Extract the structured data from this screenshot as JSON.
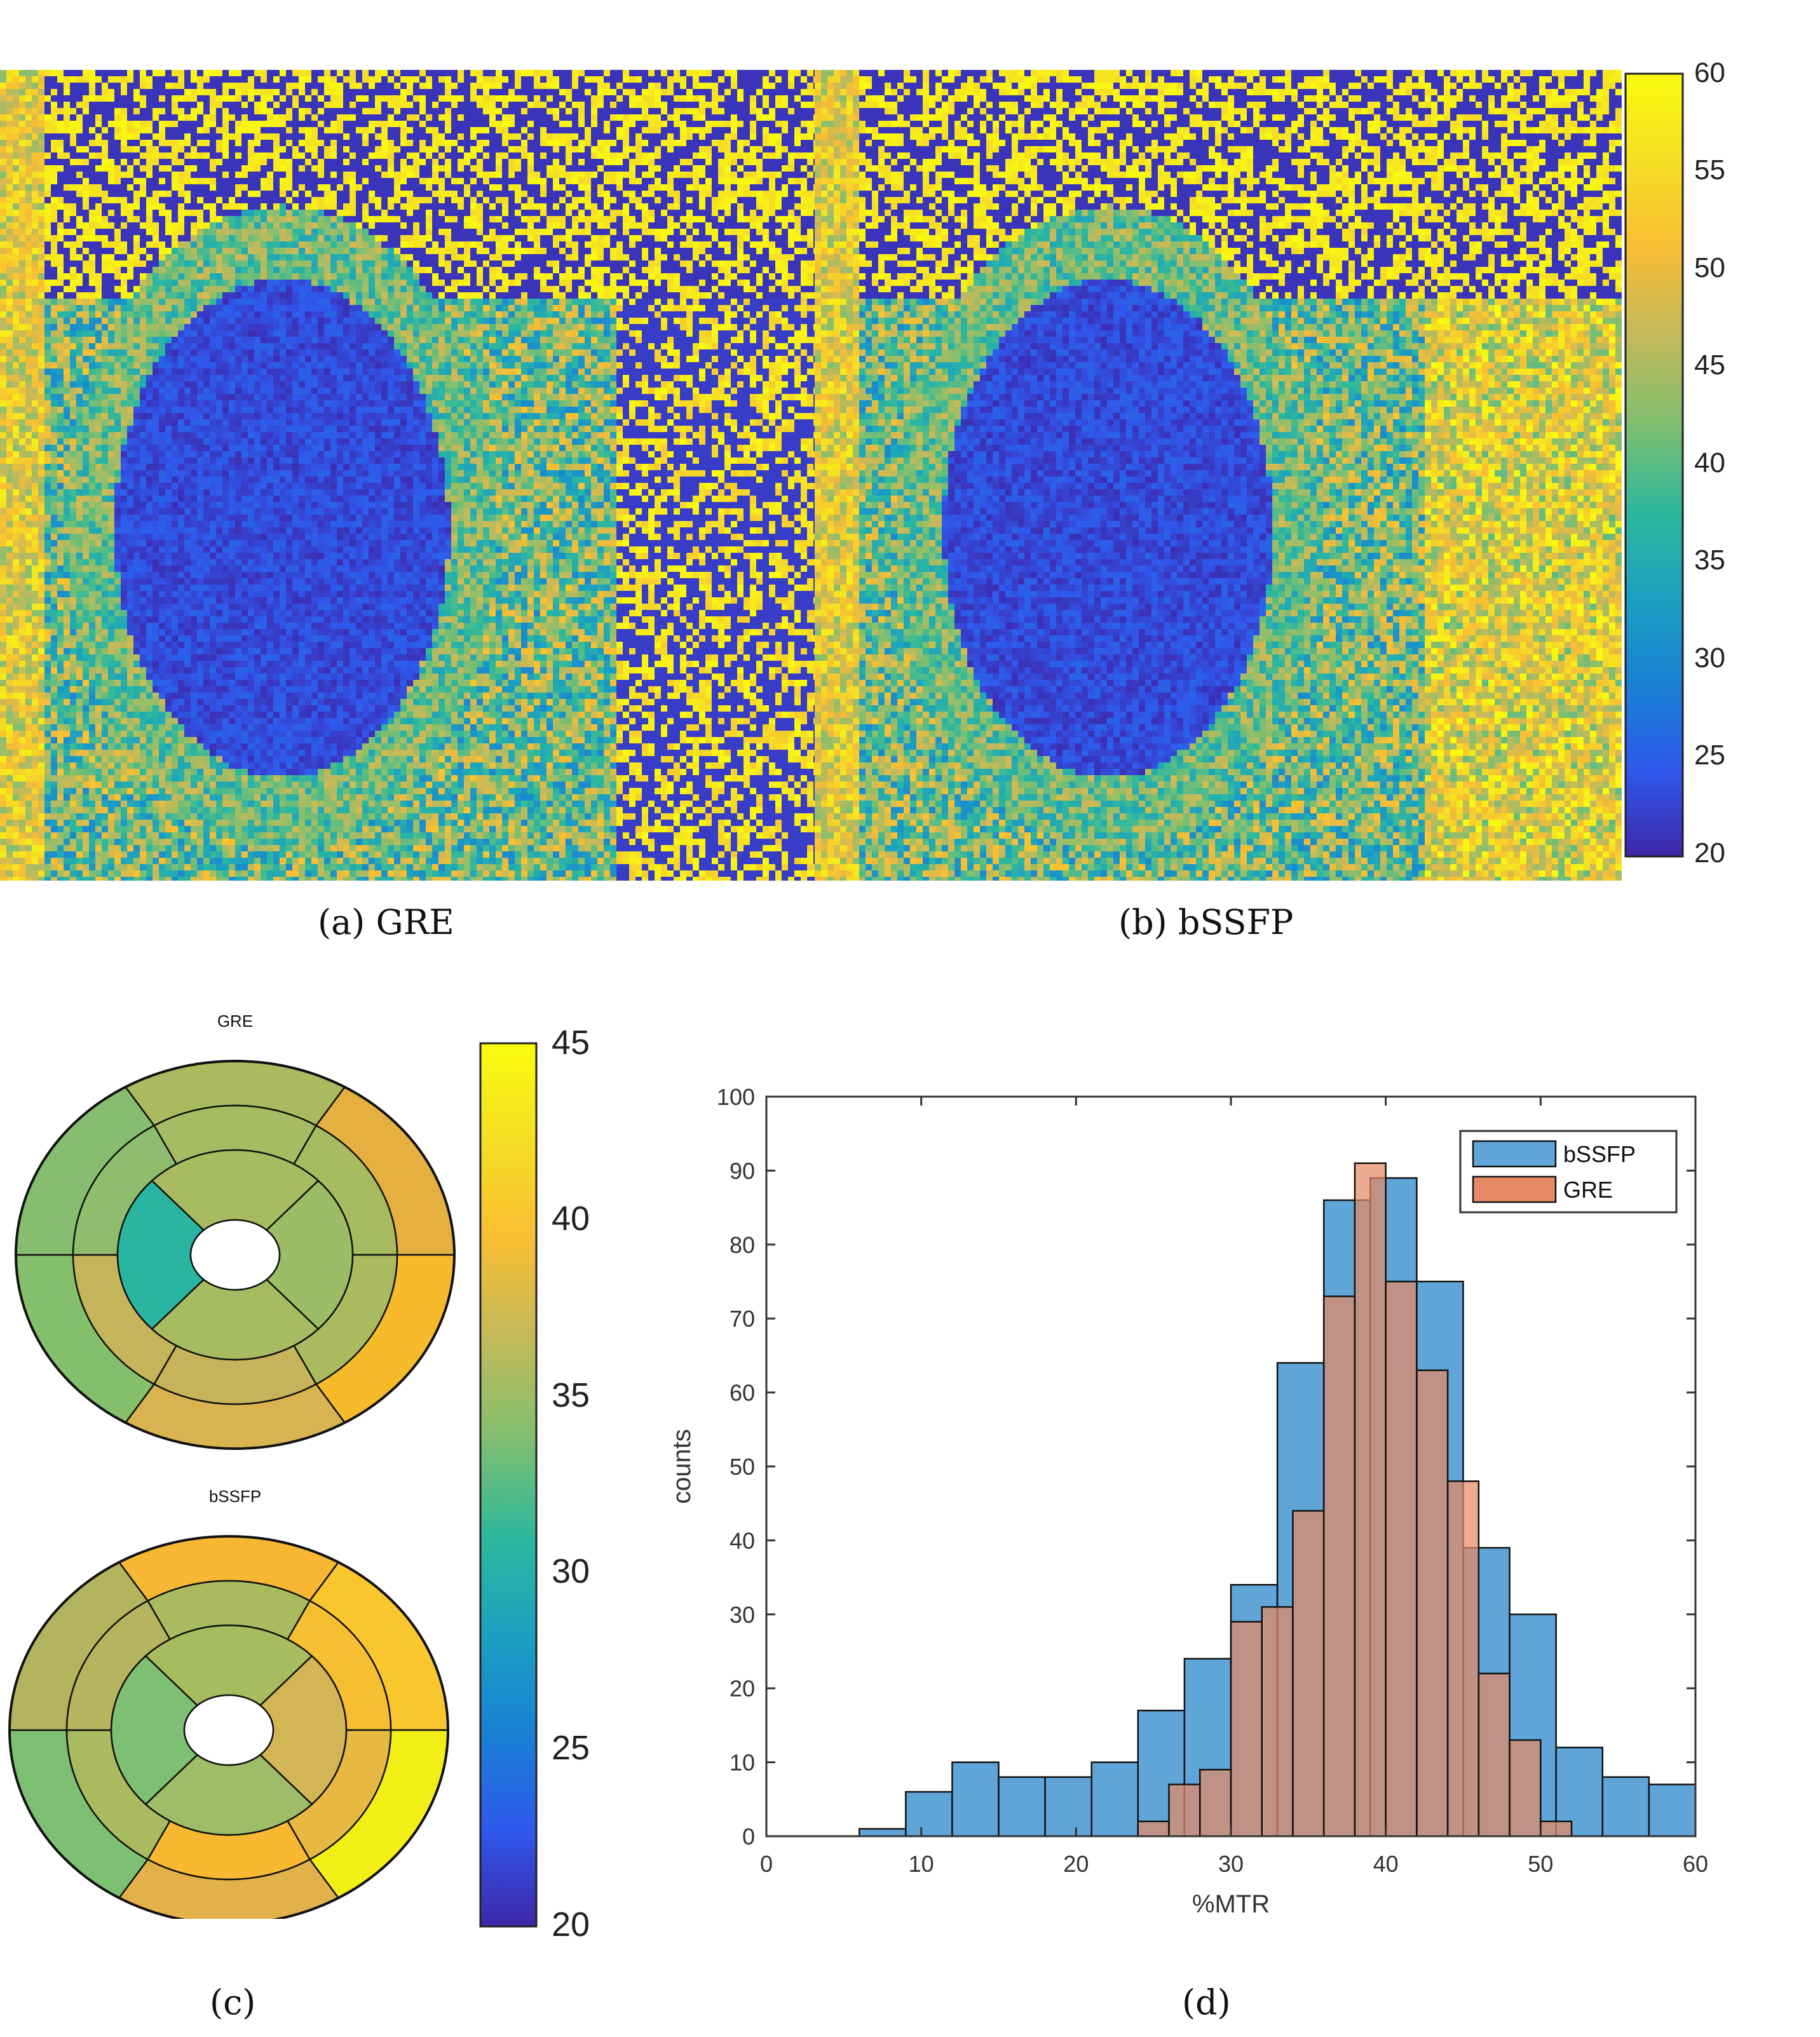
{
  "captions": {
    "a": "(a) GRE",
    "b": "(b) bSSFP",
    "c": "(c)",
    "d": "(d)"
  },
  "colorbar_top": {
    "ticks": [
      "60",
      "55",
      "50",
      "45",
      "40",
      "35",
      "30",
      "25",
      "20"
    ],
    "min": 20,
    "max": 60
  },
  "colorbar_bullseye": {
    "ticks": [
      "45",
      "40",
      "35",
      "30",
      "25",
      "20"
    ],
    "min": 20,
    "max": 45
  },
  "bullseye": {
    "gre_title": "GRE",
    "bssfp_title": "bSSFP",
    "gre_colors": {
      "basal": [
        "#a9bb5e",
        "#e6b040",
        "#f7ba2a",
        "#d9b350",
        "#84bf6c",
        "#86bd6e"
      ],
      "mid": [
        "#a7bc62",
        "#a8bb60",
        "#a9bb5e",
        "#c7b359",
        "#c4b45a",
        "#8fbd6d"
      ],
      "apical": [
        "#a8bb60",
        "#9abd66",
        "#a8bb60",
        "#2ab5a2"
      ]
    },
    "bssfp_colors": {
      "basal": [
        "#f7b733",
        "#f9c62e",
        "#f2ef16",
        "#e2b14a",
        "#7dc074",
        "#b3b45d"
      ],
      "mid": [
        "#a9bb5e",
        "#f6be31",
        "#e7b942",
        "#f8b832",
        "#a9bb5e",
        "#b6b45e"
      ],
      "apical": [
        "#a7bb5f",
        "#d4b556",
        "#9dbd66",
        "#7dc074"
      ]
    },
    "colorscale": [
      "#3e26a8",
      "#2f59ed",
      "#1981d3",
      "#1ca0c1",
      "#2db89d",
      "#86bf6d",
      "#c5b95a",
      "#f9be33",
      "#f5de24",
      "#f9fb0e"
    ]
  },
  "chart_data": [
    {
      "type": "heatmap",
      "title": "",
      "panel": "(a) GRE",
      "colorbar_range": [
        20,
        60
      ],
      "colorscale": [
        "#3e26a8",
        "#2f59ed",
        "#1981d3",
        "#1ca0c1",
        "#2db89d",
        "#86bf6d",
        "#c5b95a",
        "#f9be33",
        "#f5de24",
        "#f9fb0e"
      ]
    },
    {
      "type": "heatmap",
      "title": "",
      "panel": "(b) bSSFP",
      "colorbar_range": [
        20,
        60
      ],
      "colorscale": [
        "#3e26a8",
        "#2f59ed",
        "#1981d3",
        "#1ca0c1",
        "#2db89d",
        "#86bf6d",
        "#c5b95a",
        "#f9be33",
        "#f5de24",
        "#f9fb0e"
      ]
    },
    {
      "type": "bar",
      "title": "",
      "xlabel": "%MTR",
      "ylabel": "counts",
      "xlim": [
        0,
        60
      ],
      "ylim": [
        0,
        100
      ],
      "x_ticks": [
        "0",
        "10",
        "20",
        "30",
        "40",
        "50",
        "60"
      ],
      "y_ticks": [
        "0",
        "10",
        "20",
        "30",
        "40",
        "50",
        "60",
        "70",
        "80",
        "90",
        "100"
      ],
      "legend_position": "top-right",
      "series": [
        {
          "name": "bSSFP",
          "color": "#5fa5d7",
          "bin_edges": [
            6,
            9,
            12,
            15,
            18,
            21,
            24,
            27,
            30,
            33,
            36,
            39,
            42,
            45,
            48,
            51,
            54,
            57,
            60
          ],
          "values": [
            1,
            6,
            10,
            8,
            8,
            10,
            17,
            24,
            34,
            64,
            86,
            89,
            75,
            39,
            30,
            12,
            8,
            7
          ]
        },
        {
          "name": "GRE",
          "color": "#e68a66",
          "bin_edges": [
            24,
            26,
            28,
            30,
            32,
            34,
            36,
            38,
            40,
            42,
            44,
            46,
            48,
            50,
            52
          ],
          "values": [
            2,
            7,
            9,
            29,
            31,
            44,
            73,
            91,
            75,
            63,
            48,
            22,
            13,
            2
          ]
        }
      ]
    }
  ]
}
